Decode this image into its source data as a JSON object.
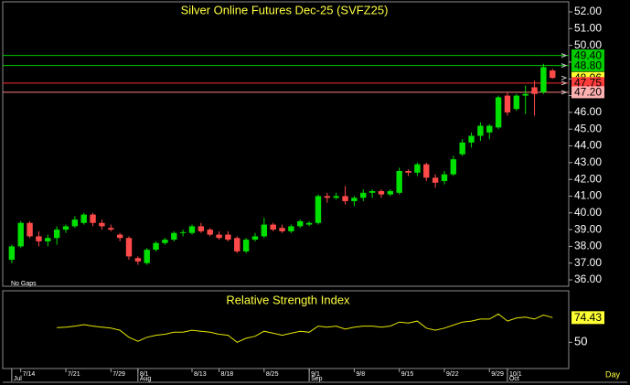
{
  "chart_data": [
    {
      "type": "candlestick",
      "title": "Silver Online Futures Dec-25 (SVFZ25)",
      "note": "No Gaps",
      "xlim": [
        -1,
        61.8
      ],
      "ylim": [
        35.62,
        52.6
      ],
      "yticks": [
        {
          "value": 36,
          "label": "36.00"
        },
        {
          "value": 37,
          "label": "37.00"
        },
        {
          "value": 38,
          "label": "38.00"
        },
        {
          "value": 39,
          "label": "39.00"
        },
        {
          "value": 40,
          "label": "40.00"
        },
        {
          "value": 41,
          "label": "41.00"
        },
        {
          "value": 42,
          "label": "42.00"
        },
        {
          "value": 43,
          "label": "43.00"
        },
        {
          "value": 44,
          "label": "44.00"
        },
        {
          "value": 45,
          "label": "45.00"
        },
        {
          "value": 46,
          "label": "46.00"
        },
        {
          "value": 47,
          "label": "47.00"
        },
        {
          "value": 48,
          "label": "48.00"
        },
        {
          "value": 49,
          "label": "49.00"
        },
        {
          "value": 50,
          "label": "50.00"
        },
        {
          "value": 51,
          "label": "51.00"
        },
        {
          "value": 52,
          "label": "52.00"
        }
      ],
      "up_color": "#00e000",
      "down_color": "#ff4a4a",
      "open": [
        37.2,
        38.0,
        39.4,
        38.6,
        38.3,
        38.5,
        39.0,
        39.2,
        39.4,
        39.9,
        39.4,
        39.1,
        38.7,
        38.5,
        37.3,
        37.0,
        37.8,
        38.2,
        38.4,
        38.8,
        38.8,
        39.2,
        39.0,
        38.7,
        38.7,
        38.5,
        37.7,
        38.4,
        38.6,
        39.3,
        39.1,
        38.9,
        39.2,
        39.3,
        39.4,
        41.0,
        40.9,
        41.0,
        40.7,
        40.9,
        41.2,
        41.3,
        41.1,
        41.2,
        42.5,
        42.4,
        42.9,
        42.1,
        41.9,
        42.3,
        43.5,
        44.2,
        44.6,
        44.8,
        45.1,
        47.0,
        46.2,
        47.0,
        47.5,
        47.2,
        48.5
      ],
      "high": [
        38.1,
        39.5,
        39.5,
        38.9,
        38.7,
        39.2,
        39.3,
        39.8,
        40.0,
        40.0,
        39.6,
        39.3,
        38.8,
        38.6,
        37.4,
        37.9,
        38.3,
        38.5,
        38.9,
        39.0,
        39.3,
        39.4,
        39.1,
        38.9,
        38.9,
        38.6,
        38.5,
        38.8,
        39.7,
        39.4,
        39.3,
        39.3,
        39.6,
        39.5,
        41.1,
        41.2,
        41.2,
        41.6,
        41.0,
        41.4,
        41.4,
        41.4,
        41.4,
        42.7,
        42.6,
        43.0,
        43.0,
        42.3,
        42.5,
        43.4,
        44.4,
        44.8,
        45.4,
        45.3,
        47.0,
        47.2,
        47.1,
        47.6,
        47.9,
        48.9,
        48.6
      ],
      "low": [
        37.0,
        37.9,
        38.5,
        38.0,
        38.0,
        38.1,
        38.8,
        39.1,
        39.3,
        39.2,
        39.0,
        38.9,
        38.3,
        37.2,
        36.9,
        36.9,
        37.7,
        38.1,
        38.3,
        38.6,
        38.7,
        38.8,
        38.6,
        38.4,
        38.3,
        37.6,
        37.6,
        38.3,
        38.5,
        38.9,
        38.8,
        38.8,
        39.1,
        39.2,
        39.3,
        40.6,
        40.8,
        40.5,
        40.4,
        40.7,
        40.9,
        40.9,
        41.0,
        41.1,
        42.2,
        42.2,
        41.9,
        41.5,
        41.7,
        42.2,
        43.4,
        43.9,
        44.3,
        44.4,
        45.0,
        45.8,
        46.1,
        45.9,
        45.8,
        47.1,
        48.0
      ],
      "close": [
        38.0,
        39.4,
        38.6,
        38.3,
        38.5,
        39.0,
        39.2,
        39.6,
        39.9,
        39.4,
        39.2,
        39.0,
        38.5,
        37.4,
        37.1,
        37.8,
        38.2,
        38.4,
        38.8,
        38.85,
        39.2,
        38.9,
        38.7,
        38.5,
        38.4,
        37.7,
        38.4,
        38.6,
        39.3,
        39.0,
        38.9,
        39.2,
        39.5,
        39.4,
        41.0,
        40.9,
        41.0,
        40.7,
        40.9,
        41.2,
        41.3,
        41.1,
        41.3,
        42.5,
        42.4,
        42.9,
        42.1,
        41.8,
        42.3,
        43.2,
        44.2,
        44.6,
        45.2,
        45.2,
        46.9,
        46.0,
        47.0,
        47.1,
        47.1,
        48.7,
        48.06
      ],
      "levels": [
        {
          "value": 49.4,
          "label": "49.40",
          "color": "#00cc00",
          "box": "#00cc00",
          "line": true
        },
        {
          "value": 48.8,
          "label": "48.80",
          "color": "#00cc00",
          "box": "#00cc00",
          "line": true
        },
        {
          "value": 48.06,
          "label": "48.06",
          "color": "#ffff00",
          "box": "#ffff33",
          "line": false
        },
        {
          "value": 47.75,
          "label": "47.75",
          "color": "#ff3030",
          "box": "#ff3c3c",
          "line": true
        },
        {
          "value": 47.2,
          "label": "47.20",
          "color": "#ff8080",
          "box": "#ffb0b0",
          "line": true
        }
      ]
    },
    {
      "type": "line",
      "title": "Relative Strength Index",
      "xlim": [
        -1,
        61.8
      ],
      "ylim": [
        24,
        101
      ],
      "yticks": [
        50
      ],
      "color": "#e8e800",
      "values": [
        null,
        null,
        null,
        null,
        null,
        64.5,
        65,
        66,
        67.5,
        66,
        65,
        64,
        62,
        55,
        51,
        55,
        57,
        58,
        60,
        60,
        62,
        61,
        60,
        58,
        57,
        50,
        54,
        56,
        61,
        59,
        57,
        59,
        61,
        60,
        66,
        65,
        66,
        63,
        65,
        66,
        66,
        65,
        66,
        70,
        69,
        71,
        64,
        62,
        64,
        67,
        70,
        71,
        73,
        73,
        78,
        71,
        74,
        75,
        73,
        77,
        74.43
      ],
      "last_label": "74.43",
      "xticks": [
        {
          "value": 1,
          "label": "7/14"
        },
        {
          "value": 6,
          "label": "7/21"
        },
        {
          "value": 11,
          "label": "7/29"
        },
        {
          "value": 14,
          "label": "8/1"
        },
        {
          "value": 20,
          "label": "8/13"
        },
        {
          "value": 23,
          "label": "8/18"
        },
        {
          "value": 28,
          "label": "8/25"
        },
        {
          "value": 33,
          "label": "9/1"
        },
        {
          "value": 38,
          "label": "9/8"
        },
        {
          "value": 43,
          "label": "9/15"
        },
        {
          "value": 48,
          "label": "9/22"
        },
        {
          "value": 53,
          "label": "9/29"
        },
        {
          "value": 55,
          "label": "10/1"
        }
      ],
      "months": [
        {
          "value": 0,
          "label": "Jul"
        },
        {
          "value": 14,
          "label": "Aug"
        },
        {
          "value": 33,
          "label": "Sep"
        },
        {
          "value": 55,
          "label": "Oct"
        }
      ],
      "x_unit": "Day"
    }
  ]
}
